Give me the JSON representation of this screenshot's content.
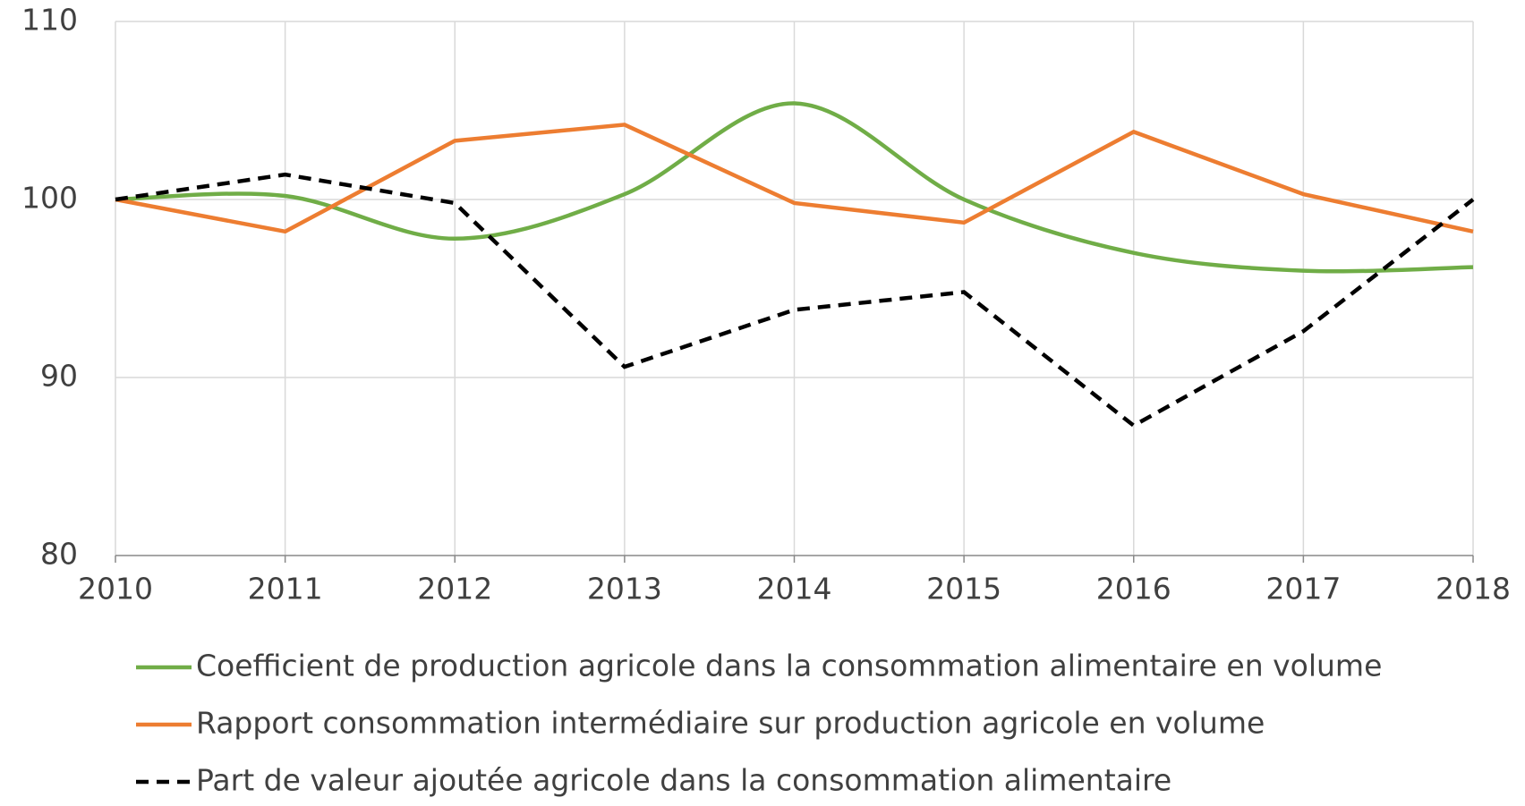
{
  "chart_data": {
    "type": "line",
    "x": [
      2010,
      2011,
      2012,
      2013,
      2014,
      2015,
      2016,
      2017,
      2018
    ],
    "xlim": [
      2010,
      2018
    ],
    "xticks": [
      2010,
      2011,
      2012,
      2013,
      2014,
      2015,
      2016,
      2017,
      2018
    ],
    "ylim": [
      80,
      110
    ],
    "yticks": [
      80,
      90,
      100,
      110
    ],
    "grid": true,
    "legend": "bottom",
    "series": [
      {
        "name": "Coefficient de production agricole dans la consommation alimentaire en volume",
        "color": "#70ad47",
        "smooth": true,
        "dash": false,
        "values": [
          100,
          100.2,
          97.8,
          100.3,
          105.4,
          100,
          97.0,
          96.0,
          96.2
        ]
      },
      {
        "name": "Rapport consommation intermédiaire sur production agricole en volume",
        "color": "#ed7d31",
        "smooth": false,
        "dash": false,
        "values": [
          100,
          98.2,
          103.3,
          104.2,
          99.8,
          98.7,
          103.8,
          100.3,
          98.2
        ]
      },
      {
        "name": "Part de valeur ajoutée agricole dans la consommation alimentaire",
        "color": "#000000",
        "smooth": false,
        "dash": true,
        "values": [
          100,
          101.4,
          99.8,
          90.6,
          93.8,
          94.8,
          87.3,
          92.6,
          100
        ]
      }
    ]
  }
}
